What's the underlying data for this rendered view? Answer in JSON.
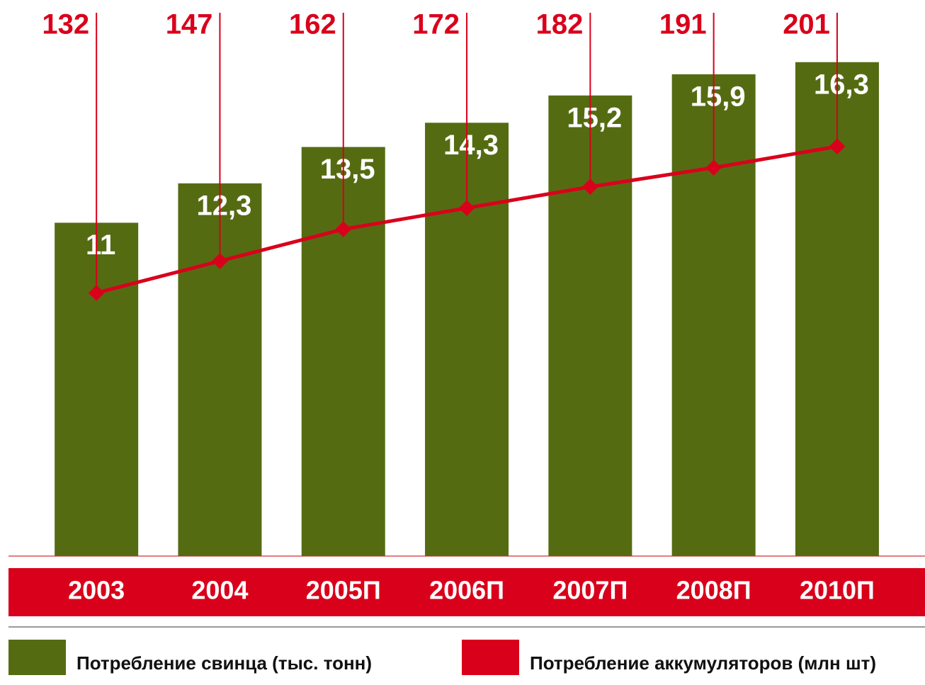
{
  "chart_data": {
    "type": "bar-line",
    "categories": [
      "2003",
      "2004",
      "2005П",
      "2006П",
      "2007П",
      "2008П",
      "2010П"
    ],
    "series": [
      {
        "name": "Потребление свинца (тыс. тонн)",
        "color": "#556b12",
        "type": "bar",
        "values": [
          11,
          12.3,
          13.5,
          14.3,
          15.2,
          15.9,
          16.3
        ],
        "value_labels": [
          "11",
          "12,3",
          "13,5",
          "14,3",
          "15,2",
          "15,9",
          "16,3"
        ]
      },
      {
        "name": "Потребление аккумуляторов (млн шт)",
        "color": "#d9001b",
        "type": "line",
        "axis": "y2",
        "values": [
          132,
          147,
          162,
          172,
          182,
          191,
          201
        ]
      }
    ],
    "ylim": [
      0,
      18
    ],
    "y2lim": [
      8,
      265
    ]
  }
}
